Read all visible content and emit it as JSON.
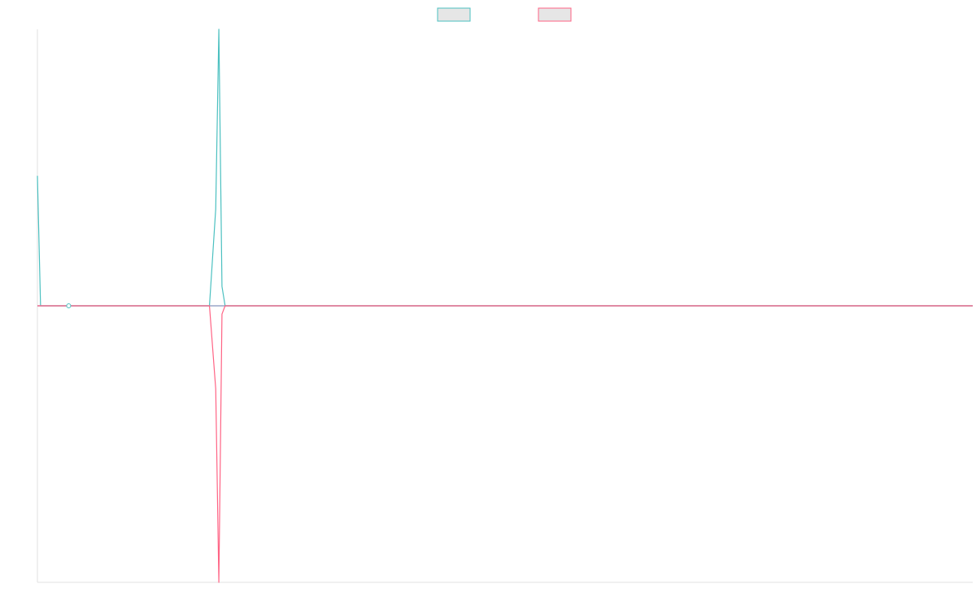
{
  "chart_data": {
    "type": "line",
    "title": "",
    "xlabel": "",
    "ylabel": "",
    "x_count": 300,
    "ylim": [
      -100,
      100
    ],
    "grid": false,
    "legend": "top-center",
    "series": [
      {
        "color": "#4bc0c0",
        "fill": "#e6e6e6",
        "points": [
          [
            0,
            47
          ],
          [
            1,
            0
          ],
          [
            10,
            0
          ],
          [
            55,
            0
          ],
          [
            57,
            35
          ],
          [
            58,
            109
          ],
          [
            59,
            7
          ],
          [
            60,
            0
          ],
          [
            299,
            0
          ]
        ]
      },
      {
        "color": "#ff6384",
        "fill": "#e6e6e6",
        "points": [
          [
            0,
            0
          ],
          [
            55,
            0
          ],
          [
            57,
            -30
          ],
          [
            58,
            -100
          ],
          [
            59,
            -3
          ],
          [
            60,
            0
          ],
          [
            299,
            0
          ]
        ]
      }
    ],
    "baseline_color": "#9aa6c9",
    "marker": {
      "index": 10,
      "value": 0
    }
  }
}
